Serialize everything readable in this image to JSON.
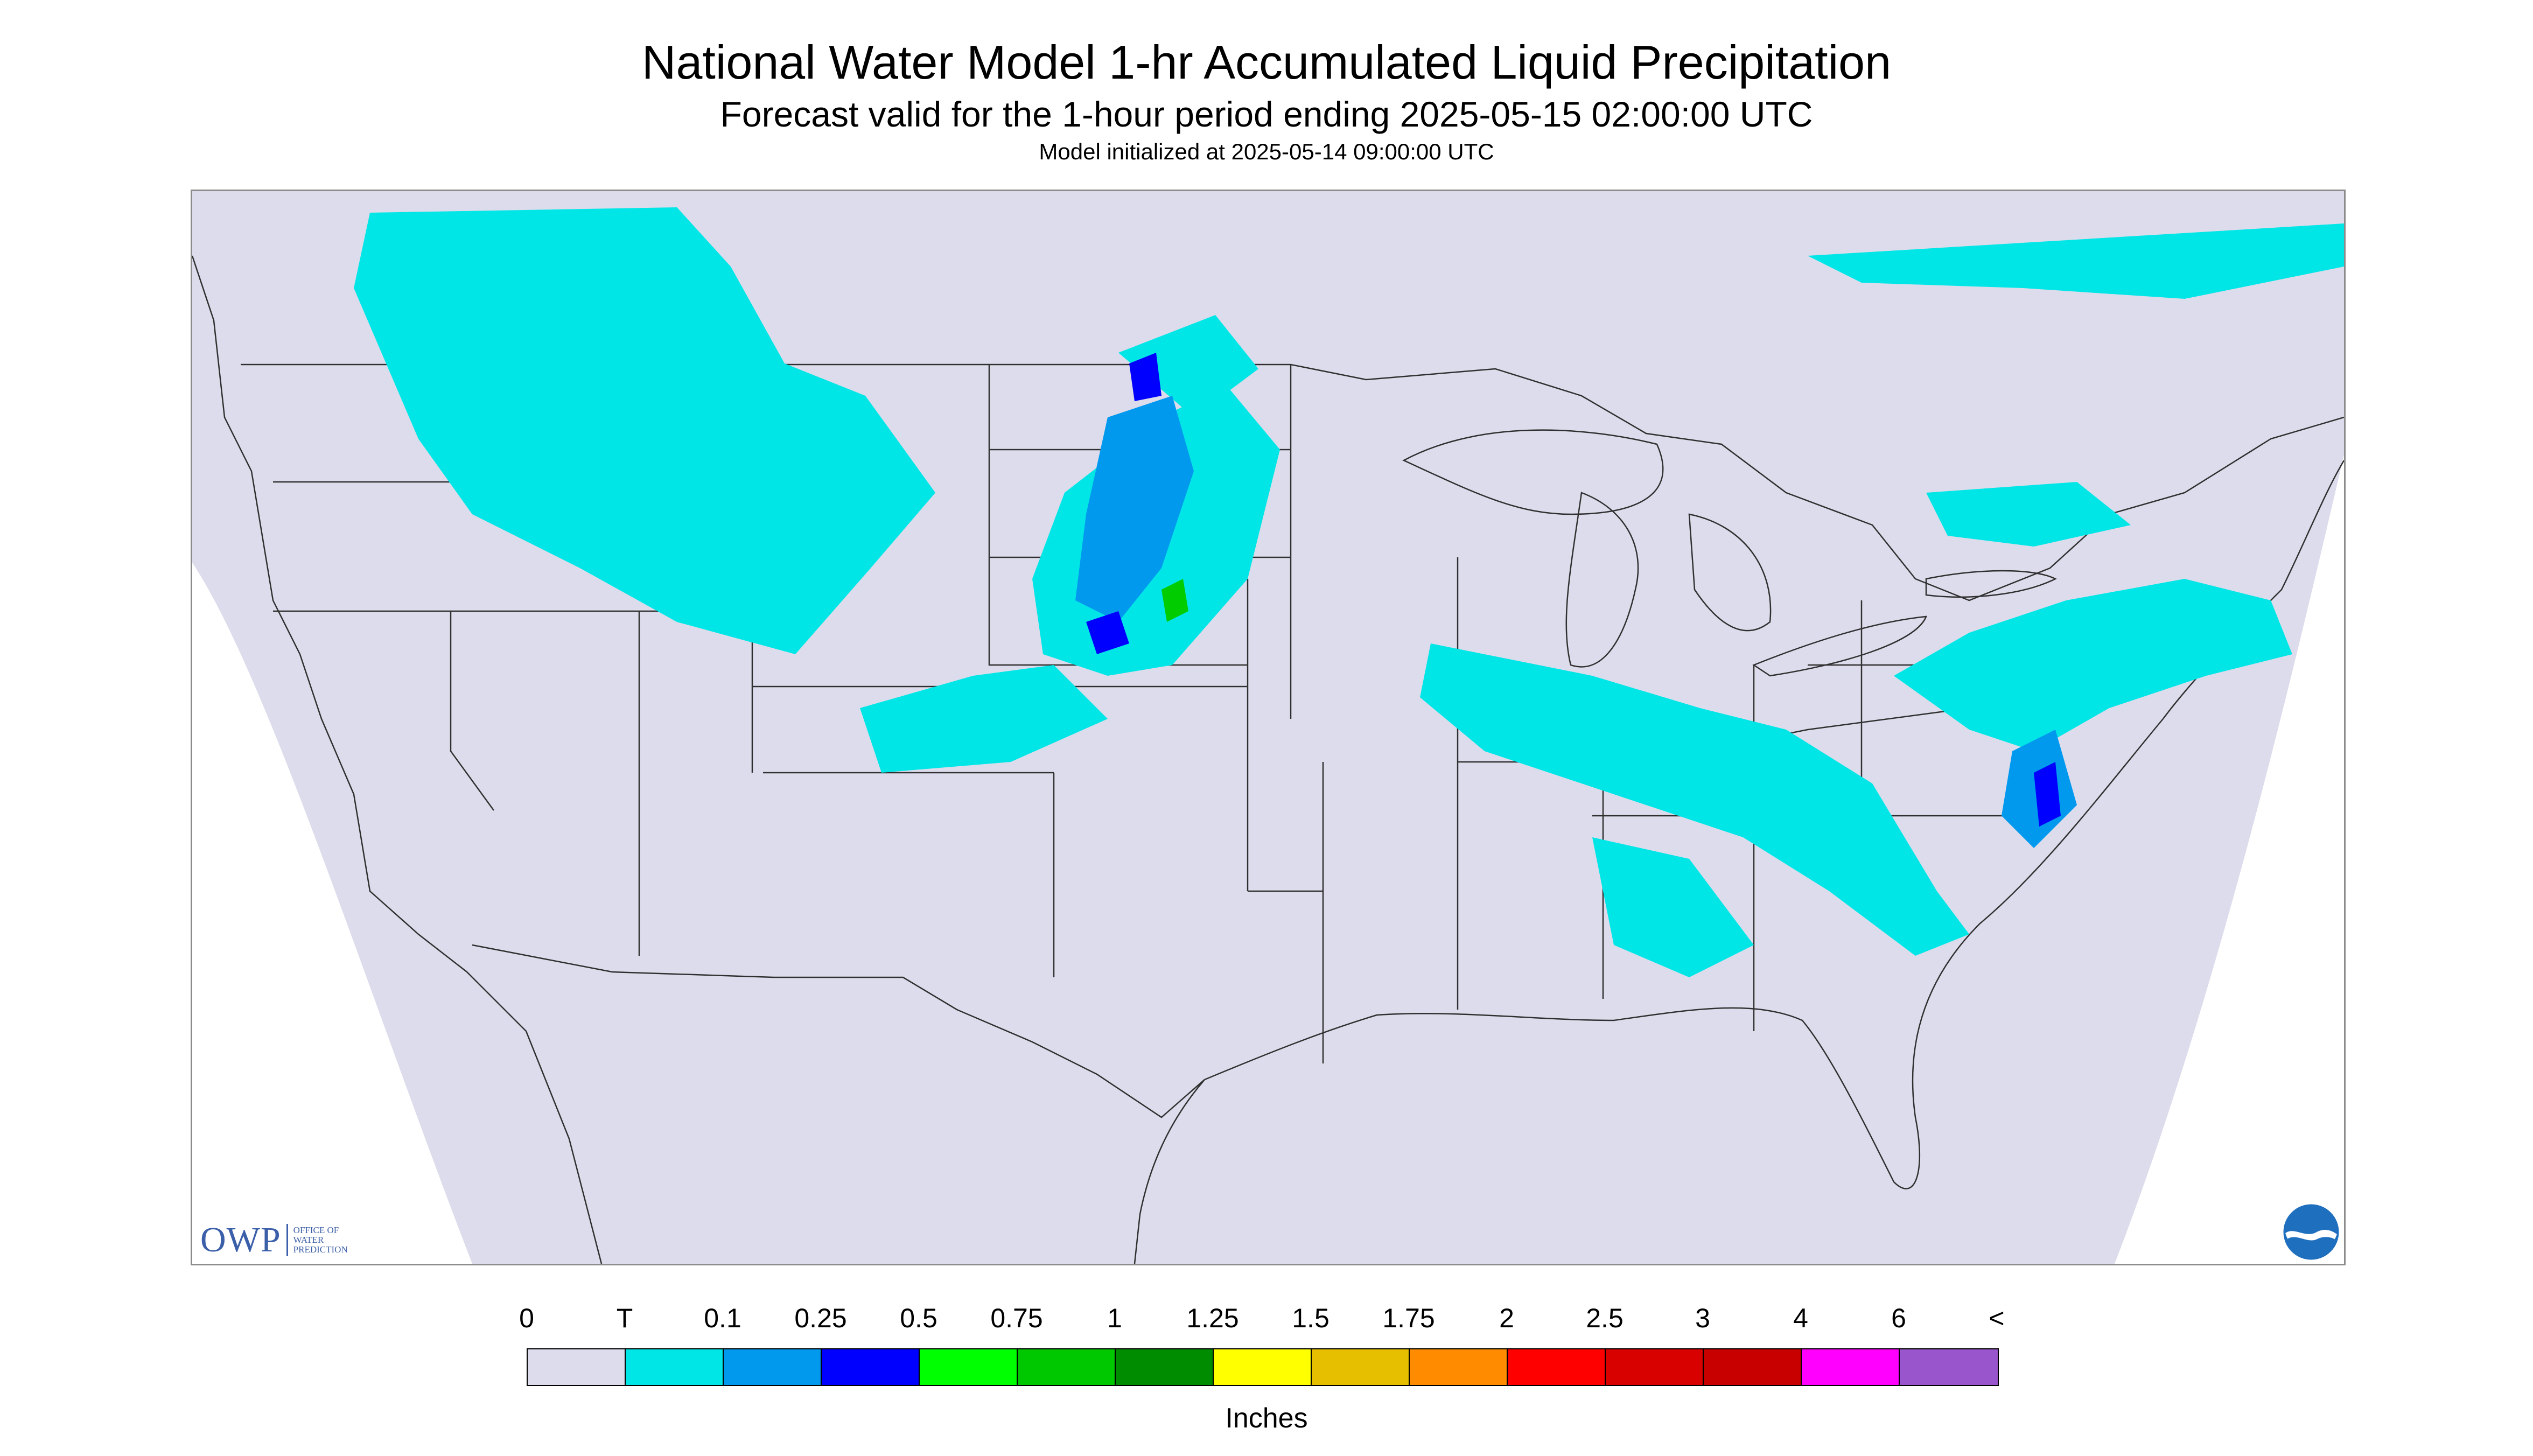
{
  "header": {
    "title": "National Water Model 1-hr Accumulated Liquid Precipitation",
    "subtitle": "Forecast valid for the 1-hour period ending 2025-05-15 02:00:00 UTC",
    "init_time": "Model initialized at 2025-05-14 09:00:00 UTC"
  },
  "map": {
    "background_color": "#ffffff",
    "domain_color": "#dcdcec",
    "boundary_color": "#303030",
    "precip_colors": {
      "trace": "#00e6e6",
      "light": "#0099ee",
      "moderate": "#0000ff",
      "heavy": "#00cc00"
    }
  },
  "logos": {
    "owp_text": "OWP",
    "owp_subtext": "OFFICE OF\nWATER\nPREDICTION",
    "noaa_icon": "noaa-icon"
  },
  "legend": {
    "labels": [
      "0",
      "T",
      "0.1",
      "0.25",
      "0.5",
      "0.75",
      "1",
      "1.25",
      "1.5",
      "1.75",
      "2",
      "2.5",
      "3",
      "4",
      "6",
      "<"
    ],
    "colors": [
      "#dcdcec",
      "#00e6e6",
      "#0099ee",
      "#0000ff",
      "#00ff00",
      "#00c800",
      "#008c00",
      "#ffff00",
      "#e6c000",
      "#ff8c00",
      "#ff0000",
      "#d90000",
      "#c80000",
      "#ff00ff",
      "#9955cc"
    ],
    "units": "Inches"
  }
}
